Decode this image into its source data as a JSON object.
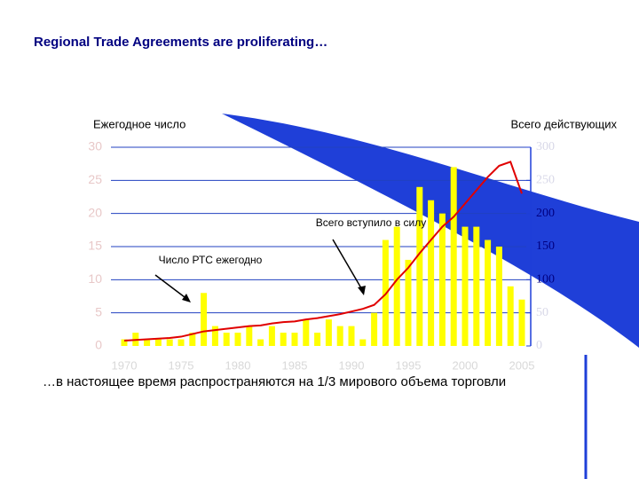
{
  "chart_data": {
    "type": "bar",
    "title": "Regional Trade Agreements are proliferating…",
    "ylabel": "Ежегодное число",
    "y2label": "Всего действующих",
    "footnote": "…в настоящее время распространяются на 1/3 мирового объема торговли",
    "categories": [
      "1970",
      null,
      null,
      null,
      null,
      "1975",
      null,
      null,
      null,
      null,
      "1980",
      null,
      null,
      null,
      null,
      "1985",
      null,
      null,
      null,
      null,
      "1990",
      null,
      null,
      null,
      null,
      "1995",
      null,
      null,
      null,
      null,
      "2000",
      null,
      null,
      null,
      null,
      "2005"
    ],
    "series": [
      {
        "name": "Число РТС ежегодно",
        "type": "bar",
        "color": "#ffff00",
        "values": [
          1,
          2,
          1,
          1,
          1,
          1,
          2,
          8,
          3,
          2,
          2,
          3,
          1,
          3,
          2,
          2,
          4,
          2,
          4,
          3,
          3,
          1,
          5,
          16,
          18,
          13,
          24,
          22,
          20,
          27,
          18,
          18,
          16,
          15,
          9,
          7
        ]
      },
      {
        "name": "Всего вступило в силу",
        "type": "line",
        "axis": "y2",
        "color": "#e00000",
        "values": [
          8,
          9,
          10,
          11,
          12,
          14,
          18,
          22,
          24,
          26,
          28,
          30,
          31,
          34,
          36,
          37,
          40,
          42,
          45,
          48,
          52,
          56,
          62,
          78,
          100,
          118,
          140,
          160,
          180,
          195,
          215,
          235,
          255,
          272,
          278,
          230
        ]
      }
    ],
    "ylim": [
      0,
      30
    ],
    "yticks": [
      0,
      5,
      10,
      15,
      20,
      25,
      30
    ],
    "y2lim": [
      0,
      300
    ],
    "y2ticks": [
      0,
      50,
      100,
      150,
      200,
      250,
      300
    ],
    "grid": true
  }
}
